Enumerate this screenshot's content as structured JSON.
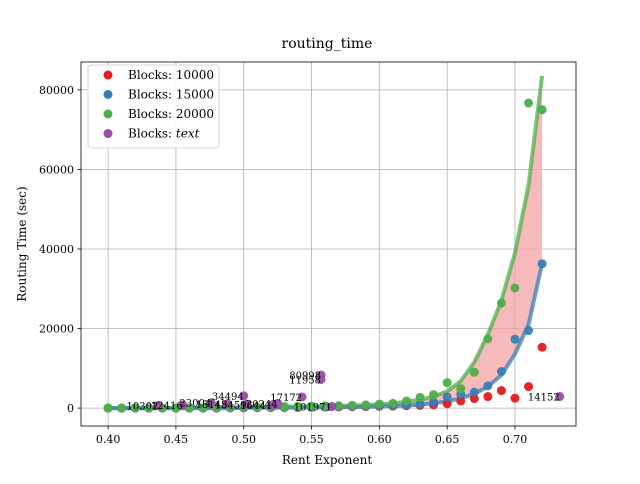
{
  "chart_data": {
    "type": "scatter",
    "title": "routing_time",
    "xlabel": "Rent Exponent",
    "ylabel": "Routing Time (sec)",
    "xlim": [
      0.38,
      0.745
    ],
    "ylim": [
      -4500,
      87000
    ],
    "xticks": [
      0.4,
      0.45,
      0.5,
      0.55,
      0.6,
      0.65,
      0.7
    ],
    "xtick_labels": [
      "0.40",
      "0.45",
      "0.50",
      "0.55",
      "0.60",
      "0.65",
      "0.70"
    ],
    "yticks": [
      0,
      20000,
      40000,
      60000,
      80000
    ],
    "ytick_labels": [
      "0",
      "20000",
      "40000",
      "60000",
      "80000"
    ],
    "grid": true,
    "legend_position": "top-left",
    "series": [
      {
        "name": "Blocks: 10000",
        "color": "#e41a1c",
        "points": [
          [
            0.4,
            0
          ],
          [
            0.41,
            0
          ],
          [
            0.42,
            0
          ],
          [
            0.43,
            0
          ],
          [
            0.44,
            0
          ],
          [
            0.45,
            0
          ],
          [
            0.46,
            0
          ],
          [
            0.47,
            0
          ],
          [
            0.48,
            0
          ],
          [
            0.49,
            50
          ],
          [
            0.5,
            80
          ],
          [
            0.51,
            100
          ],
          [
            0.52,
            120
          ],
          [
            0.53,
            150
          ],
          [
            0.54,
            180
          ],
          [
            0.55,
            200
          ],
          [
            0.56,
            250
          ],
          [
            0.57,
            300
          ],
          [
            0.58,
            350
          ],
          [
            0.59,
            400
          ],
          [
            0.6,
            450
          ],
          [
            0.61,
            500
          ],
          [
            0.62,
            600
          ],
          [
            0.63,
            700
          ],
          [
            0.64,
            800
          ],
          [
            0.65,
            1100
          ],
          [
            0.66,
            1800
          ],
          [
            0.67,
            2400
          ],
          [
            0.68,
            2900
          ],
          [
            0.69,
            4400
          ],
          [
            0.7,
            2500
          ],
          [
            0.71,
            5400
          ],
          [
            0.72,
            15300
          ]
        ]
      },
      {
        "name": "Blocks: 15000",
        "color": "#377eb8",
        "points": [
          [
            0.4,
            0
          ],
          [
            0.41,
            0
          ],
          [
            0.42,
            0
          ],
          [
            0.43,
            0
          ],
          [
            0.44,
            0
          ],
          [
            0.45,
            0
          ],
          [
            0.46,
            0
          ],
          [
            0.47,
            0
          ],
          [
            0.48,
            50
          ],
          [
            0.49,
            80
          ],
          [
            0.5,
            100
          ],
          [
            0.51,
            120
          ],
          [
            0.52,
            150
          ],
          [
            0.53,
            200
          ],
          [
            0.54,
            250
          ],
          [
            0.55,
            300
          ],
          [
            0.56,
            350
          ],
          [
            0.57,
            400
          ],
          [
            0.58,
            450
          ],
          [
            0.59,
            500
          ],
          [
            0.6,
            600
          ],
          [
            0.61,
            700
          ],
          [
            0.62,
            800
          ],
          [
            0.63,
            1000
          ],
          [
            0.64,
            1500
          ],
          [
            0.65,
            2800
          ],
          [
            0.66,
            3500
          ],
          [
            0.67,
            4000
          ],
          [
            0.68,
            5600
          ],
          [
            0.69,
            9200
          ],
          [
            0.7,
            17300
          ],
          [
            0.71,
            19500
          ],
          [
            0.72,
            36300
          ]
        ]
      },
      {
        "name": "Blocks: 20000",
        "color": "#4daf4a",
        "points": [
          [
            0.4,
            0
          ],
          [
            0.41,
            0
          ],
          [
            0.42,
            0
          ],
          [
            0.43,
            0
          ],
          [
            0.44,
            0
          ],
          [
            0.45,
            0
          ],
          [
            0.46,
            0
          ],
          [
            0.47,
            100
          ],
          [
            0.48,
            150
          ],
          [
            0.49,
            200
          ],
          [
            0.5,
            250
          ],
          [
            0.51,
            300
          ],
          [
            0.52,
            350
          ],
          [
            0.53,
            400
          ],
          [
            0.54,
            450
          ],
          [
            0.55,
            500
          ],
          [
            0.56,
            550
          ],
          [
            0.57,
            600
          ],
          [
            0.58,
            700
          ],
          [
            0.59,
            800
          ],
          [
            0.6,
            1000
          ],
          [
            0.61,
            1200
          ],
          [
            0.62,
            1800
          ],
          [
            0.63,
            2700
          ],
          [
            0.64,
            3400
          ],
          [
            0.65,
            6400
          ],
          [
            0.66,
            4900
          ],
          [
            0.67,
            9000
          ],
          [
            0.68,
            17400
          ],
          [
            0.69,
            26400
          ],
          [
            0.7,
            30200
          ],
          [
            0.71,
            76700
          ],
          [
            0.72,
            75000
          ]
        ]
      },
      {
        "name": "Blocks: $text$",
        "label_main": "Blocks: ",
        "label_math": "text",
        "color": "#984ea3",
        "points": [
          {
            "x": 0.5,
            "y": 3100,
            "label": "34494"
          },
          {
            "x": 0.476,
            "y": 1350,
            "label": "23004"
          },
          {
            "x": 0.488,
            "y": 1050,
            "label": "15145"
          },
          {
            "x": 0.502,
            "y": 950,
            "label": "18459"
          },
          {
            "x": 0.525,
            "y": 1200,
            "label": "20244"
          },
          {
            "x": 0.521,
            "y": 750,
            "label": "16441"
          },
          {
            "x": 0.543,
            "y": 2800,
            "label": "17172"
          },
          {
            "x": 0.455,
            "y": 800,
            "label": "12416"
          },
          {
            "x": 0.437,
            "y": 650,
            "label": "10302"
          },
          {
            "x": 0.557,
            "y": 8300,
            "label": "80998"
          },
          {
            "x": 0.557,
            "y": 7200,
            "label": "11958"
          },
          {
            "x": 0.565,
            "y": 400,
            "label": "101971"
          },
          {
            "x": 0.733,
            "y": 2900,
            "label": "14152"
          }
        ]
      }
    ],
    "fit_bands": {
      "x": [
        0.4,
        0.41,
        0.42,
        0.43,
        0.44,
        0.45,
        0.46,
        0.47,
        0.48,
        0.49,
        0.5,
        0.51,
        0.52,
        0.53,
        0.54,
        0.55,
        0.56,
        0.57,
        0.58,
        0.59,
        0.6,
        0.61,
        0.62,
        0.63,
        0.64,
        0.65,
        0.66,
        0.67,
        0.68,
        0.69,
        0.7,
        0.71,
        0.72
      ],
      "upper": {
        "color": "#4daf4a",
        "values": [
          0,
          0,
          0,
          0,
          0,
          0,
          0,
          50,
          100,
          150,
          200,
          250,
          300,
          350,
          400,
          450,
          500,
          550,
          650,
          800,
          950,
          1200,
          1600,
          2100,
          2900,
          4200,
          6800,
          11500,
          18500,
          27000,
          39000,
          56000,
          83500
        ]
      },
      "lower": {
        "color": "#377eb8",
        "values": [
          0,
          0,
          0,
          0,
          0,
          0,
          0,
          0,
          0,
          0,
          50,
          50,
          80,
          100,
          120,
          150,
          180,
          220,
          250,
          300,
          400,
          500,
          650,
          850,
          1200,
          1700,
          2400,
          3600,
          5400,
          8300,
          13600,
          21000,
          36300
        ]
      },
      "fill_color": "#f4a3a3"
    }
  }
}
